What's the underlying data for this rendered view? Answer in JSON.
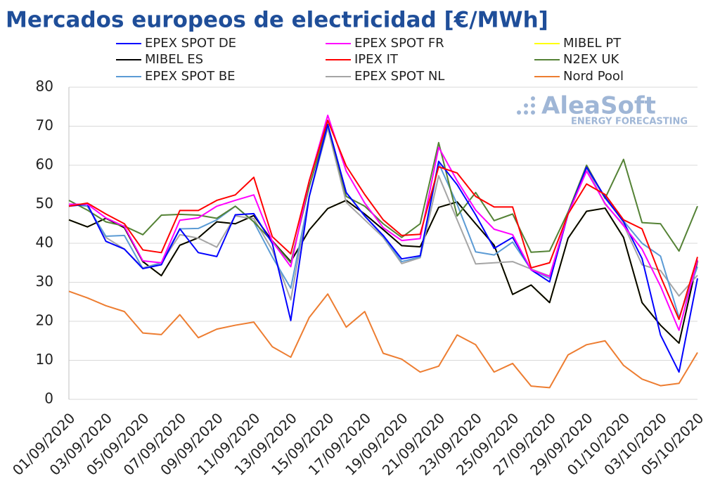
{
  "chart_data": {
    "type": "line",
    "title": "Mercados europeos de electricidad [€/MWh]",
    "watermark": [
      "AleaSoft",
      "ENERGY FORECASTING"
    ],
    "categories": [
      "01/09/2020",
      null,
      "03/09/2020",
      null,
      "05/09/2020",
      null,
      "07/09/2020",
      null,
      "09/09/2020",
      null,
      "11/09/2020",
      null,
      "13/09/2020",
      null,
      "15/09/2020",
      null,
      "17/09/2020",
      null,
      "19/09/2020",
      null,
      "21/09/2020",
      null,
      "23/09/2020",
      null,
      "25/09/2020",
      null,
      "27/09/2020",
      null,
      "29/09/2020",
      null,
      "01/10/2020",
      null,
      "03/10/2020",
      null,
      "05/10/2020"
    ],
    "ylim": [
      0,
      80
    ],
    "yticks": [
      0,
      10,
      20,
      30,
      40,
      50,
      60,
      70,
      80
    ],
    "grid": true,
    "series": [
      {
        "name": "Nord Pool",
        "color": "#ed7d31",
        "values": [
          27.7,
          26,
          24,
          22.5,
          17,
          16.6,
          21.7,
          15.8,
          18,
          19,
          19.8,
          13.5,
          10.8,
          21,
          27,
          18.5,
          22.5,
          11.8,
          10.3,
          7,
          8.5,
          16.5,
          14,
          7,
          9.2,
          3.4,
          3,
          11.4,
          14,
          15,
          8.7,
          5.2,
          3.5,
          4.1,
          12
        ]
      },
      {
        "name": "MIBEL PT",
        "color": "#ffff00",
        "values": [
          46,
          44.2,
          46.4,
          44,
          35.3,
          31.7,
          39.5,
          41.4,
          45.5,
          45,
          47.1,
          40.6,
          35.3,
          43.4,
          48.9,
          51,
          47.5,
          43.5,
          39.4,
          39.1,
          49.2,
          50.6,
          45,
          39.5,
          26.9,
          29.3,
          24.8,
          41.3,
          48.2,
          49,
          41.5,
          24.8,
          19,
          14.4,
          35.5
        ]
      },
      {
        "name": "MIBEL ES",
        "color": "#000000",
        "values": [
          46,
          44.2,
          46.4,
          44,
          35.3,
          31.7,
          39.5,
          41.4,
          45.5,
          45,
          47.1,
          40.6,
          35.3,
          43.4,
          48.9,
          51,
          47.5,
          43.5,
          39.4,
          39.1,
          49.2,
          50.6,
          45,
          39.5,
          26.9,
          29.3,
          24.8,
          41.3,
          48.2,
          49,
          41.5,
          24.8,
          19,
          14.4,
          35.5
        ]
      },
      {
        "name": "EPEX SPOT NL",
        "color": "#a5a5a5",
        "values": [
          50,
          49.5,
          41.5,
          38.5,
          33.7,
          35,
          42.2,
          41.3,
          39,
          47,
          46.3,
          38.3,
          25.5,
          52,
          69.5,
          50.5,
          46,
          41.5,
          34.8,
          36.3,
          57.3,
          46,
          34.7,
          35,
          35.3,
          33.4,
          31.6,
          47.5,
          59.3,
          50,
          44.8,
          34.5,
          33,
          26.5,
          31.8
        ]
      },
      {
        "name": "EPEX SPOT BE",
        "color": "#5b9bd5",
        "values": [
          50,
          49.5,
          41.8,
          42,
          33.5,
          35,
          43.7,
          43.8,
          46,
          49.5,
          45.5,
          36.5,
          28.5,
          52,
          70,
          53,
          47,
          41.8,
          35.3,
          36.5,
          60.5,
          50,
          37.8,
          37,
          40.3,
          33.3,
          31,
          47.5,
          59.5,
          51.5,
          45.7,
          40,
          36.7,
          21,
          34
        ]
      },
      {
        "name": "N2EX UK",
        "color": "#548235",
        "values": [
          51,
          48.5,
          45.5,
          44.4,
          42.2,
          47.2,
          47.4,
          47.2,
          46.4,
          49.5,
          45.5,
          40.5,
          35,
          54.5,
          70.5,
          52,
          49.5,
          45,
          41.5,
          45,
          65.8,
          47,
          53,
          45.8,
          47.5,
          37.7,
          38,
          48,
          60,
          51.5,
          61.5,
          45.3,
          45,
          38,
          49.5
        ]
      },
      {
        "name": "EPEX SPOT DE",
        "color": "#0000ff",
        "values": [
          49.5,
          50,
          40.5,
          38.5,
          33.5,
          34.5,
          43.7,
          37.6,
          36.6,
          47.3,
          47.6,
          40,
          20.2,
          52,
          70.5,
          53,
          47,
          42,
          36,
          36.8,
          61,
          55,
          47.3,
          38.7,
          41.5,
          33.2,
          30.1,
          47.5,
          59.5,
          51.8,
          45.5,
          36.1,
          16.5,
          7,
          31
        ]
      },
      {
        "name": "EPEX SPOT FR",
        "color": "#ff00ff",
        "values": [
          50,
          50,
          46.5,
          44.3,
          35.5,
          35,
          45.9,
          46.5,
          49.5,
          51,
          52.4,
          40.5,
          34,
          56,
          72.8,
          58.5,
          50.3,
          44,
          40.7,
          41.2,
          64.6,
          56,
          48.5,
          43.6,
          42.2,
          33.2,
          31.5,
          47.5,
          58.5,
          50.2,
          44.5,
          38.5,
          29,
          17.7,
          35.8
        ]
      },
      {
        "name": "IPEX IT",
        "color": "#ff0000",
        "values": [
          49.5,
          50.3,
          47.5,
          45,
          38.3,
          37.6,
          48.4,
          48.4,
          51,
          52.4,
          56.9,
          41.7,
          37.3,
          56,
          71.5,
          59.8,
          52.5,
          46,
          42,
          42.3,
          59.6,
          58,
          52,
          49.3,
          49.3,
          33.7,
          35,
          47.5,
          55.2,
          52.5,
          46,
          43.7,
          31.5,
          20.5,
          36.5
        ]
      }
    ]
  }
}
